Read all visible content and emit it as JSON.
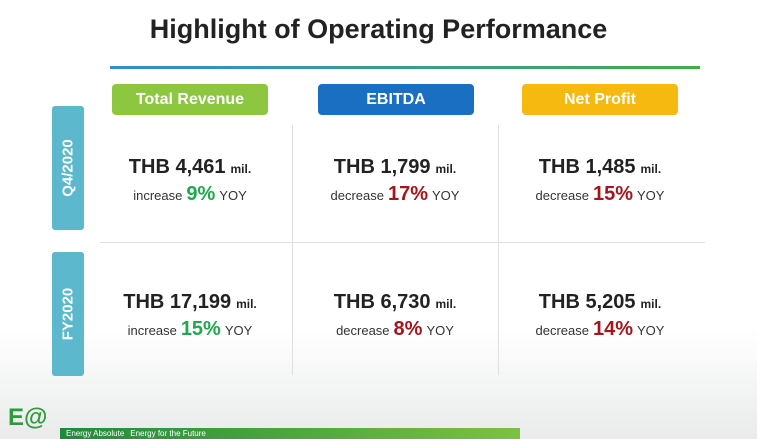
{
  "title": "Highlight of Operating Performance",
  "columns": [
    {
      "label": "Total Revenue",
      "color": "#8dc63f"
    },
    {
      "label": "EBITDA",
      "color": "#1b6fc2"
    },
    {
      "label": "Net Profit",
      "color": "#f6b90f"
    }
  ],
  "rows": [
    {
      "period": "Q4/2020",
      "cells": [
        {
          "amount": "THB 4,461",
          "unit": "mil.",
          "direction": "increase",
          "percent": "9%",
          "suffix": "YOY",
          "color": "#1fa84f"
        },
        {
          "amount": "THB 1,799",
          "unit": "mil.",
          "direction": "decrease",
          "percent": "17%",
          "suffix": "YOY",
          "color": "#a3171c"
        },
        {
          "amount": "THB 1,485",
          "unit": "mil.",
          "direction": "decrease",
          "percent": "15%",
          "suffix": "YOY",
          "color": "#a3171c"
        }
      ]
    },
    {
      "period": "FY2020",
      "cells": [
        {
          "amount": "THB 17,199",
          "unit": "mil.",
          "direction": "increase",
          "percent": "15%",
          "suffix": "YOY",
          "color": "#1fa84f"
        },
        {
          "amount": "THB 6,730",
          "unit": "mil.",
          "direction": "decrease",
          "percent": "8%",
          "suffix": "YOY",
          "color": "#a3171c"
        },
        {
          "amount": "THB 5,205",
          "unit": "mil.",
          "direction": "decrease",
          "percent": "14%",
          "suffix": "YOY",
          "color": "#a3171c"
        }
      ]
    }
  ],
  "footer": {
    "logo": "E@",
    "company": "Energy Absolute",
    "tagline": "Energy for the Future"
  }
}
